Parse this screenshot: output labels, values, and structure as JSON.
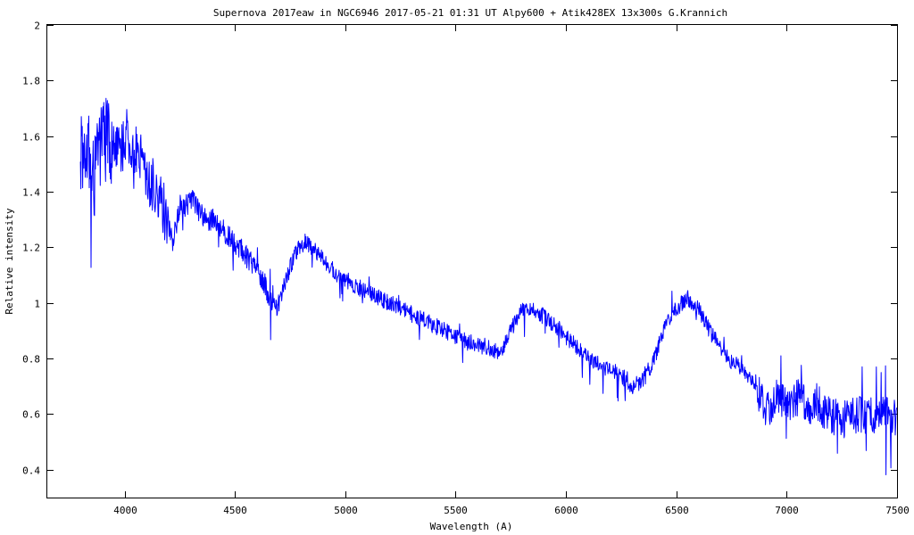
{
  "chart_data": {
    "type": "line",
    "title": "Supernova 2017eaw in NGC6946   2017-05-21 01:31 UT   Alpy600 + Atik428EX  13x300s   G.Krannich",
    "xlabel": "Wavelength (A)",
    "ylabel": "Relative intensity",
    "xlim": [
      3650,
      7500
    ],
    "ylim": [
      0.3,
      2.0
    ],
    "xticks": [
      4000,
      4500,
      5000,
      5500,
      6000,
      6500,
      7000,
      7500
    ],
    "yticks": [
      0.4,
      0.6,
      0.8,
      1,
      1.2,
      1.4,
      1.6,
      1.8,
      2
    ],
    "xtick_labels": [
      "4000",
      "4500",
      "5000",
      "5500",
      "6000",
      "6500",
      "7000",
      "7500"
    ],
    "ytick_labels": [
      "0.4",
      "0.6",
      "0.8",
      "1",
      "1.2",
      "1.4",
      "1.6",
      "1.8",
      "2"
    ],
    "grid": false,
    "legend": "none",
    "series": [
      {
        "color": "#0000ff",
        "x": [
          3800,
          3830,
          3860,
          3890,
          3920,
          3950,
          3980,
          4010,
          4040,
          4070,
          4100,
          4130,
          4160,
          4190,
          4220,
          4250,
          4280,
          4310,
          4340,
          4370,
          4400,
          4430,
          4460,
          4490,
          4520,
          4550,
          4580,
          4610,
          4640,
          4670,
          4700,
          4730,
          4760,
          4790,
          4820,
          4850,
          4880,
          4910,
          4940,
          4970,
          5000,
          5050,
          5100,
          5150,
          5200,
          5250,
          5300,
          5350,
          5400,
          5450,
          5500,
          5550,
          5600,
          5650,
          5700,
          5750,
          5800,
          5850,
          5900,
          5950,
          6000,
          6050,
          6100,
          6150,
          6200,
          6250,
          6300,
          6350,
          6400,
          6450,
          6500,
          6550,
          6600,
          6650,
          6700,
          6750,
          6800,
          6850,
          6880,
          6900,
          6950,
          7000,
          7050,
          7100,
          7150,
          7200,
          7250,
          7300,
          7350,
          7400,
          7450,
          7500
        ],
        "values": [
          1.55,
          1.6,
          1.45,
          1.55,
          1.6,
          1.58,
          1.55,
          1.6,
          1.5,
          1.55,
          1.45,
          1.42,
          1.38,
          1.3,
          1.22,
          1.35,
          1.35,
          1.37,
          1.33,
          1.3,
          1.3,
          1.28,
          1.25,
          1.22,
          1.2,
          1.17,
          1.14,
          1.1,
          1.06,
          0.98,
          1.0,
          1.08,
          1.15,
          1.2,
          1.22,
          1.2,
          1.17,
          1.15,
          1.12,
          1.1,
          1.08,
          1.06,
          1.04,
          1.02,
          1.0,
          0.98,
          0.96,
          0.94,
          0.92,
          0.9,
          0.88,
          0.86,
          0.85,
          0.84,
          0.82,
          0.9,
          0.97,
          0.98,
          0.95,
          0.92,
          0.88,
          0.84,
          0.8,
          0.78,
          0.76,
          0.74,
          0.7,
          0.72,
          0.8,
          0.92,
          0.98,
          1.02,
          0.98,
          0.9,
          0.84,
          0.79,
          0.76,
          0.72,
          0.66,
          0.62,
          0.64,
          0.64,
          0.66,
          0.62,
          0.63,
          0.6,
          0.58,
          0.59,
          0.6,
          0.6,
          0.6,
          0.58
        ]
      }
    ]
  }
}
